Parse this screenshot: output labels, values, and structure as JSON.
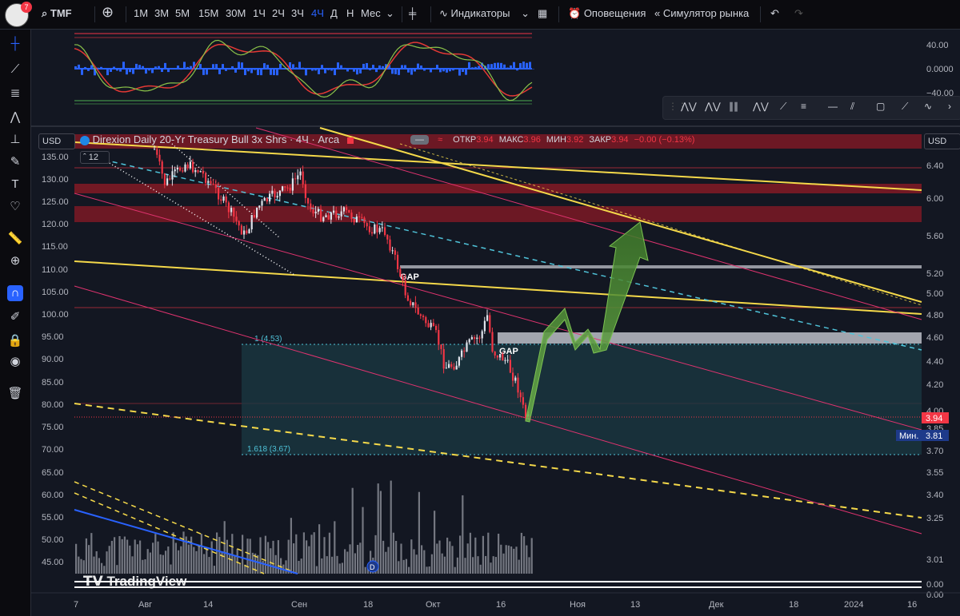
{
  "toolbar": {
    "badge": "7",
    "symbol": "TMF",
    "intervals": [
      "1М",
      "3М",
      "5М",
      "15М",
      "30М",
      "1Ч",
      "2Ч",
      "3Ч",
      "4Ч",
      "Д",
      "Н",
      "Мес"
    ],
    "active_interval": "4Ч",
    "indicators_label": "Индикаторы",
    "alerts_label": "Оповещения",
    "replay_label": "Симулятор рынка"
  },
  "legend": {
    "currency_left": "USD",
    "currency_right": "USD",
    "title": "Direxion Daily 20-Yr Treasury Bull 3x Shrs · 4Ч · Arca",
    "open_label": "ОТКР",
    "open": "3.94",
    "high_label": "МАКС",
    "high": "3.96",
    "low_label": "МИН",
    "low": "3.92",
    "close_label": "ЗАКР",
    "close": "3.94",
    "change": "−0.00 (−0.13%)",
    "indicator_count": "12"
  },
  "colors": {
    "bg": "#131722",
    "up": "#e0e3eb",
    "down": "#f23645",
    "yellow": "#f5d94a",
    "pink": "#e0336f",
    "cyan": "#4fc3d9",
    "zone": "#1b3a43",
    "arrow": "#5a9a3a"
  },
  "oscillator": {
    "axis": [
      "40.00",
      "0.0000",
      "−40.00"
    ]
  },
  "left_axis": [
    "135.00",
    "130.00",
    "125.00",
    "120.00",
    "115.00",
    "110.00",
    "105.00",
    "100.00",
    "95.00",
    "90.00",
    "85.00",
    "80.00",
    "75.00",
    "70.00",
    "65.00",
    "60.00",
    "55.00",
    "50.00",
    "45.00"
  ],
  "right_axis": [
    "6.40",
    "6.00",
    "5.60",
    "5.20",
    "5.00",
    "4.80",
    "4.60",
    "4.40",
    "4.20",
    "4.00",
    "3.85",
    "3.70",
    "3.55",
    "3.40",
    "3.25",
    "3.01",
    "0.00",
    "0.00"
  ],
  "price_tag": "3.94",
  "min_label": "Мин.",
  "min_value": "3.81",
  "annotations": {
    "gap1": "GAP",
    "gap2": "GAP",
    "fib1": "1 (4.53)",
    "fib1618": "1.618 (3.67)"
  },
  "time_axis": [
    "7",
    "Авг",
    "14",
    "Сен",
    "18",
    "Окт",
    "16",
    "Ноя",
    "13",
    "Дек",
    "18",
    "2024",
    "16"
  ],
  "watermark": "TradingView",
  "event_marker": "D"
}
